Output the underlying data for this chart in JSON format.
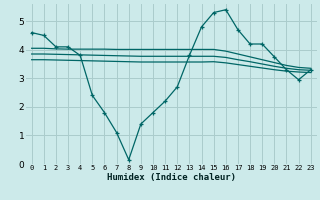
{
  "xlabel": "Humidex (Indice chaleur)",
  "ylabel": "",
  "bg_color": "#cceaea",
  "grid_color": "#aacccc",
  "line_color": "#006666",
  "xlim": [
    -0.5,
    23.5
  ],
  "ylim": [
    0,
    5.6
  ],
  "yticks": [
    0,
    1,
    2,
    3,
    4,
    5
  ],
  "xticks": [
    0,
    1,
    2,
    3,
    4,
    5,
    6,
    7,
    8,
    9,
    10,
    11,
    12,
    13,
    14,
    15,
    16,
    17,
    18,
    19,
    20,
    21,
    22,
    23
  ],
  "line1_x": [
    0,
    1,
    2,
    3,
    4,
    5,
    6,
    7,
    8,
    9,
    10,
    11,
    12,
    13,
    14,
    15,
    16,
    17,
    18,
    19,
    20,
    21,
    22,
    23
  ],
  "line1_y": [
    4.6,
    4.5,
    4.1,
    4.1,
    3.8,
    2.4,
    1.8,
    1.1,
    0.15,
    1.4,
    1.8,
    2.2,
    2.7,
    3.8,
    4.8,
    5.3,
    5.4,
    4.7,
    4.2,
    4.2,
    3.75,
    3.3,
    2.95,
    3.3
  ],
  "line2_x": [
    0,
    1,
    2,
    3,
    4,
    5,
    6,
    7,
    8,
    9,
    10,
    11,
    12,
    13,
    14,
    15,
    16,
    17,
    18,
    19,
    20,
    21,
    22,
    23
  ],
  "line2_y": [
    4.05,
    4.05,
    4.03,
    4.02,
    4.02,
    4.02,
    4.02,
    4.01,
    4.01,
    4.01,
    4.01,
    4.01,
    4.01,
    4.01,
    4.01,
    4.01,
    3.95,
    3.85,
    3.75,
    3.65,
    3.55,
    3.45,
    3.38,
    3.35
  ],
  "line3_x": [
    0,
    1,
    2,
    3,
    4,
    5,
    6,
    7,
    8,
    9,
    10,
    11,
    12,
    13,
    14,
    15,
    16,
    17,
    18,
    19,
    20,
    21,
    22,
    23
  ],
  "line3_y": [
    3.85,
    3.85,
    3.84,
    3.83,
    3.82,
    3.81,
    3.8,
    3.79,
    3.78,
    3.77,
    3.77,
    3.77,
    3.77,
    3.77,
    3.77,
    3.77,
    3.73,
    3.65,
    3.58,
    3.5,
    3.42,
    3.35,
    3.3,
    3.28
  ],
  "line4_x": [
    0,
    1,
    2,
    3,
    4,
    5,
    6,
    7,
    8,
    9,
    10,
    11,
    12,
    13,
    14,
    15,
    16,
    17,
    18,
    19,
    20,
    21,
    22,
    23
  ],
  "line4_y": [
    3.65,
    3.65,
    3.64,
    3.63,
    3.62,
    3.61,
    3.6,
    3.59,
    3.58,
    3.57,
    3.57,
    3.57,
    3.57,
    3.57,
    3.57,
    3.58,
    3.54,
    3.48,
    3.42,
    3.36,
    3.3,
    3.25,
    3.22,
    3.2
  ]
}
